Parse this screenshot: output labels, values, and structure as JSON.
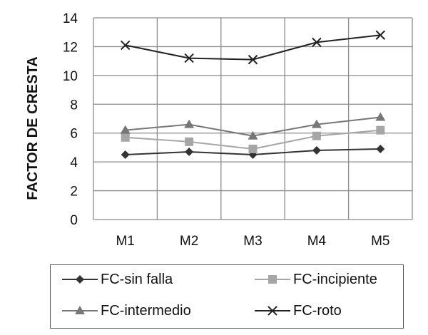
{
  "chart_data": {
    "type": "line",
    "title": "",
    "xlabel": "",
    "ylabel": "FACTOR DE CRESTA",
    "categories": [
      "M1",
      "M2",
      "M3",
      "M4",
      "M5"
    ],
    "ylim": [
      0,
      14
    ],
    "yticks": [
      0,
      2,
      4,
      6,
      8,
      10,
      12,
      14
    ],
    "grid": true,
    "legend_position": "bottom",
    "series": [
      {
        "name": "FC-sin falla",
        "marker": "diamond",
        "color": "#333333",
        "values": [
          4.5,
          4.7,
          4.5,
          4.8,
          4.9
        ]
      },
      {
        "name": "FC-incipiente",
        "marker": "square",
        "color": "#a6a6a6",
        "values": [
          5.7,
          5.4,
          4.9,
          5.8,
          6.2
        ]
      },
      {
        "name": "FC-intermedio",
        "marker": "triangle",
        "color": "#777777",
        "values": [
          6.2,
          6.6,
          5.8,
          6.6,
          7.1
        ]
      },
      {
        "name": "FC-roto",
        "marker": "x",
        "color": "#222222",
        "values": [
          12.1,
          11.2,
          11.1,
          12.3,
          12.8
        ]
      }
    ]
  }
}
